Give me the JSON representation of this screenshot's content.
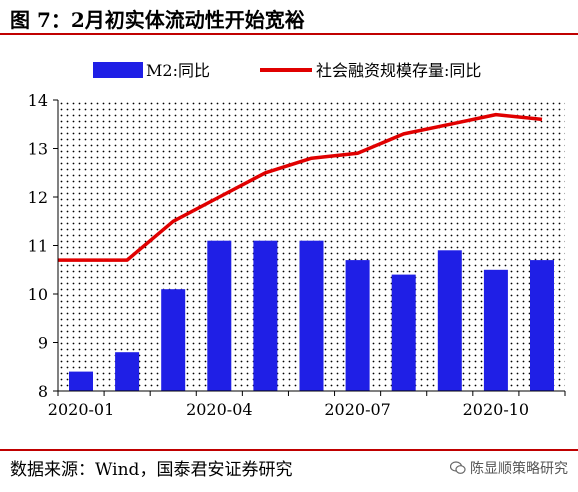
{
  "figure": {
    "title": "图 7：2月初实体流动性开始宽裕",
    "source": "数据来源：Wind，国泰君安证券研究",
    "watermark": "陈显顺策略研究"
  },
  "colors": {
    "bar": "#1f1fe6",
    "line": "#e00000",
    "accent_rule": "#c00000"
  },
  "chart_data": {
    "type": "bar+line",
    "categories": [
      "2020-01",
      "2020-02",
      "2020-03",
      "2020-04",
      "2020-05",
      "2020-06",
      "2020-07",
      "2020-08",
      "2020-09",
      "2020-10",
      "2020-11"
    ],
    "x_tick_labels": [
      "2020-01",
      "2020-04",
      "2020-07",
      "2020-10"
    ],
    "series": [
      {
        "name": "M2:同比",
        "type": "bar",
        "values": [
          8.4,
          8.8,
          10.1,
          11.1,
          11.1,
          11.1,
          10.7,
          10.4,
          10.9,
          10.5,
          10.7
        ]
      },
      {
        "name": "社会融资规模存量:同比",
        "type": "line",
        "values": [
          10.7,
          10.7,
          11.5,
          12.0,
          12.5,
          12.8,
          12.9,
          13.3,
          13.5,
          13.7,
          13.6
        ]
      }
    ],
    "ylim": [
      8,
      14
    ],
    "yticks": [
      "8",
      "9",
      "10",
      "11",
      "12",
      "13",
      "14"
    ],
    "legend_position": "top",
    "plot_background": "dotted"
  }
}
